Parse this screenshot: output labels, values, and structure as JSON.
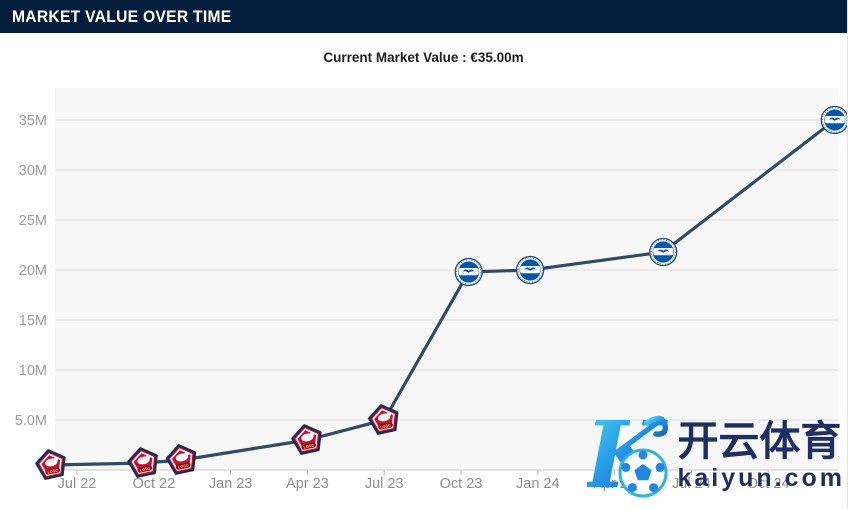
{
  "header": {
    "title": "MARKET VALUE OVER TIME"
  },
  "chart_data": {
    "type": "line",
    "title": "Current Market Value : €35.00m",
    "current_market_value": "€35.00m",
    "unit": "EUR millions",
    "grid": true,
    "x_axis_epoch": "months since Jun 2022",
    "x_ticks": [
      {
        "label": "Jul 22",
        "months": 1
      },
      {
        "label": "Oct 22",
        "months": 4
      },
      {
        "label": "Jan 23",
        "months": 7
      },
      {
        "label": "Apr 23",
        "months": 10
      },
      {
        "label": "Jul 23",
        "months": 13
      },
      {
        "label": "Oct 23",
        "months": 16
      },
      {
        "label": "Jan 24",
        "months": 19
      },
      {
        "label": "Apr 24",
        "months": 22
      },
      {
        "label": "Jul 24",
        "months": 25
      },
      {
        "label": "Oct 24",
        "months": 28
      }
    ],
    "y_ticks": [
      {
        "label": "5.0M",
        "value": 5
      },
      {
        "label": "10M",
        "value": 10
      },
      {
        "label": "15M",
        "value": 15
      },
      {
        "label": "20M",
        "value": 20
      },
      {
        "label": "25M",
        "value": 25
      },
      {
        "label": "30M",
        "value": 30
      },
      {
        "label": "35M",
        "value": 35
      }
    ],
    "ylim": [
      0,
      38.2
    ],
    "xlim_months": [
      0.1,
      30.7
    ],
    "series": [
      {
        "name": "Market value",
        "marker": "club-crest",
        "points": [
          {
            "x_months": 0.0,
            "value": 0.5,
            "club": "Lille OSC",
            "marker_icon": "lille-crest-icon"
          },
          {
            "x_months": 3.6,
            "value": 0.7,
            "club": "Lille OSC",
            "marker_icon": "lille-crest-icon"
          },
          {
            "x_months": 5.1,
            "value": 1.0,
            "club": "Lille OSC",
            "marker_icon": "lille-crest-icon"
          },
          {
            "x_months": 10.0,
            "value": 3.0,
            "club": "Lille OSC",
            "marker_icon": "lille-crest-icon"
          },
          {
            "x_months": 13.0,
            "value": 5.0,
            "club": "Lille OSC",
            "marker_icon": "lille-crest-icon"
          },
          {
            "x_months": 16.3,
            "value": 19.8,
            "club": "Brighton & Hove Albion",
            "marker_icon": "brighton-crest-icon"
          },
          {
            "x_months": 18.7,
            "value": 20.0,
            "club": "Brighton & Hove Albion",
            "marker_icon": "brighton-crest-icon"
          },
          {
            "x_months": 23.9,
            "value": 21.8,
            "club": "Brighton & Hove Albion",
            "marker_icon": "brighton-crest-icon"
          },
          {
            "x_months": 30.6,
            "value": 35.0,
            "club": "Brighton & Hove Albion",
            "marker_icon": "brighton-crest-icon"
          }
        ]
      }
    ]
  },
  "watermark": {
    "logo_icon": "kaiyun-k-logo-icon",
    "brand": "开云体育",
    "domain": "kaiyun.com"
  },
  "colors": {
    "header_bg": "#041d3c",
    "header_text": "#ffffff",
    "title_text": "#1f1f1f",
    "plot_bg": "#f7f7f7",
    "gridline": "#dcdcdc",
    "axis_line": "#c9c9c9",
    "tick_mark": "#b5b5b5",
    "y_label": "#9a9a9a",
    "x_label": "#8c8c8c",
    "value_line": "#2d4b6b",
    "lille_red": "#c8102e",
    "lille_navy": "#1d2b56",
    "brighton_blue": "#0057b8",
    "brighton_ring": "#24487e",
    "watermark_navy": "#1d2f63",
    "kaiyun_gradient_start": "#49e1ef",
    "kaiyun_gradient_end": "#1565c0"
  }
}
